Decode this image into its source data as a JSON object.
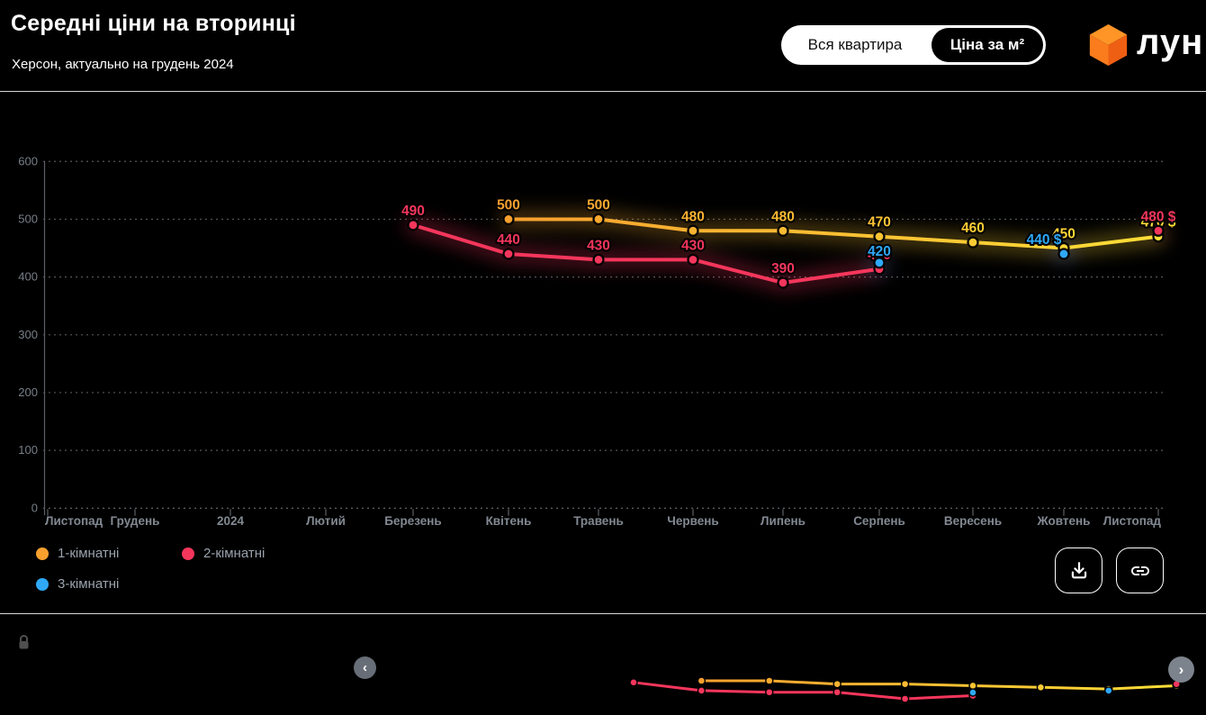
{
  "header": {
    "title": "Середні ціни на вторинці",
    "subtitle": "Херсон, актуально на грудень 2024",
    "toggle": {
      "inactive_label": "Вся квартира",
      "active_label": "Ціна за м²"
    },
    "logo_text": "лун"
  },
  "chart_data": {
    "type": "line",
    "title": "Середні ціни на вторинці",
    "x_categories": [
      "Листопад",
      "Грудень",
      "2024",
      "Лютий",
      "Березень",
      "Квітень",
      "Травень",
      "Червень",
      "Липень",
      "Серпень",
      "Вересень",
      "Жовтень",
      "Листопад"
    ],
    "yticks": [
      0,
      100,
      200,
      300,
      400,
      500,
      600
    ],
    "ylim": [
      0,
      600
    ],
    "grid": "horizontal-dashed",
    "legend_position": "bottom-left",
    "currency_suffix": "$",
    "series": [
      {
        "name": "1-кімнатні",
        "color": "#f7a02e",
        "color_end": "#ffde37",
        "points": [
          {
            "i": 5,
            "v": 500
          },
          {
            "i": 6,
            "v": 500
          },
          {
            "i": 7,
            "v": 480
          },
          {
            "i": 8,
            "v": 480
          },
          {
            "i": 9,
            "v": 470
          },
          {
            "i": 10,
            "v": 460
          },
          {
            "i": 11,
            "v": 450
          },
          {
            "i": 12,
            "v": 470,
            "label": "470 $"
          }
        ]
      },
      {
        "name": "2-кімнатні",
        "color": "#f5365c",
        "points": [
          {
            "i": 4,
            "v": 490
          },
          {
            "i": 5,
            "v": 440
          },
          {
            "i": 6,
            "v": 430
          },
          {
            "i": 7,
            "v": 430
          },
          {
            "i": 8,
            "v": 390
          },
          {
            "i": 9,
            "v": 420,
            "dot_dy": 4,
            "label_dy": 4
          }
        ],
        "extra_points": [
          {
            "i": 12,
            "v": 480,
            "label": "480 $"
          }
        ]
      },
      {
        "name": "3-кімнатні",
        "color": "#2fa8f8",
        "line": false,
        "points": [
          {
            "i": 9,
            "v": 420,
            "dot_dy": -3
          },
          {
            "i": 11,
            "v": 440,
            "label": "440 $",
            "label_dx": -22
          }
        ]
      }
    ]
  },
  "legend": [
    {
      "label": "1-кімнатні",
      "color": "#f7a02e"
    },
    {
      "label": "2-кімнатні",
      "color": "#f5365c"
    },
    {
      "label": "3-кімнатні",
      "color": "#2fa8f8"
    }
  ],
  "navigator": {
    "prev_icon": "‹",
    "next_icon": "›"
  }
}
